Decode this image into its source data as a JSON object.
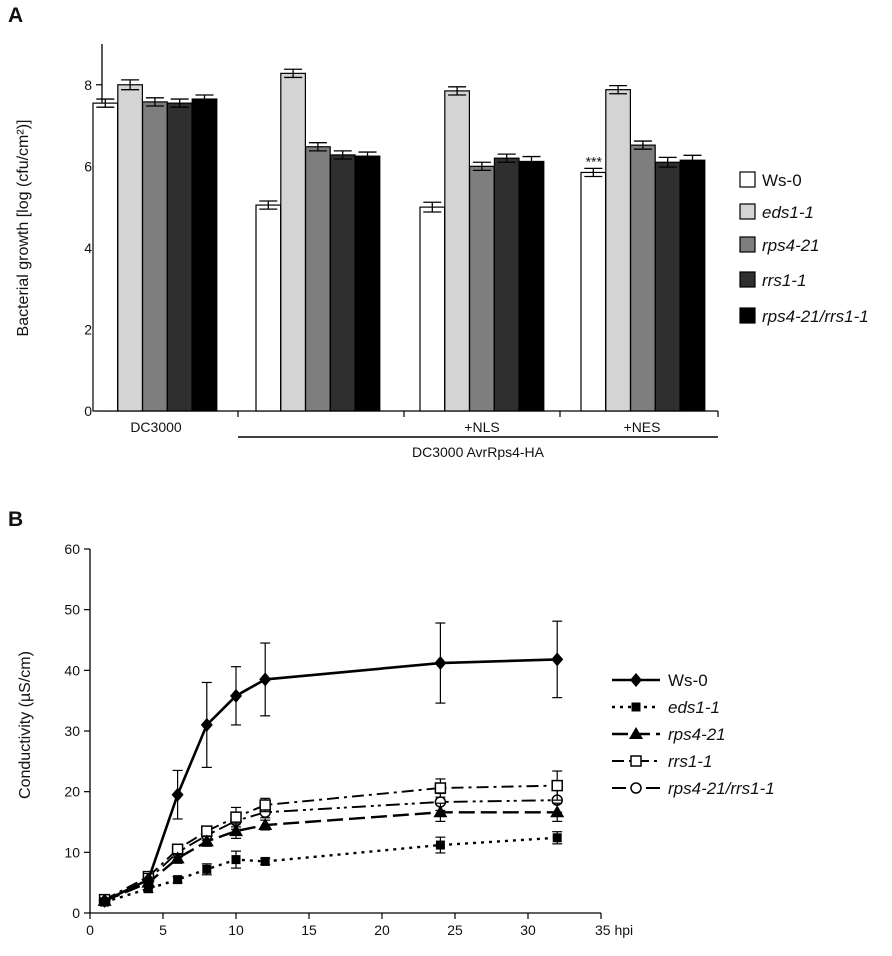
{
  "panels": [
    {
      "letter": "A"
    },
    {
      "letter": "B"
    }
  ],
  "chart_data": [
    {
      "type": "bar",
      "ylabel": "Bacterial growth [log (cfu/cm²)]",
      "ylim": [
        0,
        9
      ],
      "yticks": [
        "0",
        "2",
        "4",
        "6",
        "8"
      ],
      "yticks_values": [
        0,
        2,
        4,
        6,
        8
      ],
      "categories": [
        "DC3000",
        "DC3000 AvrRps4-HA",
        "+NLS",
        "+NES"
      ],
      "category_labels": [
        "DC3000",
        "",
        "+NLS",
        "+NES"
      ],
      "super_group_label": "DC3000 AvrRps4-HA",
      "annotation": "***",
      "series": [
        {
          "name": "Ws-0",
          "italic": false,
          "color": "#ffffff",
          "values": [
            7.55,
            5.05,
            5.0,
            5.85
          ],
          "errors": [
            0.1,
            0.1,
            0.12,
            0.1
          ]
        },
        {
          "name": "eds1-1",
          "italic": true,
          "color": "#d4d4d4",
          "values": [
            8.0,
            8.28,
            7.85,
            7.88
          ],
          "errors": [
            0.12,
            0.1,
            0.1,
            0.1
          ]
        },
        {
          "name": "rps4-21",
          "italic": true,
          "color": "#7e7e7e",
          "values": [
            7.58,
            6.48,
            6.0,
            6.52
          ],
          "errors": [
            0.1,
            0.1,
            0.1,
            0.1
          ]
        },
        {
          "name": "rrs1-1",
          "italic": true,
          "color": "#2f2f2f",
          "values": [
            7.55,
            6.28,
            6.2,
            6.1
          ],
          "errors": [
            0.1,
            0.1,
            0.1,
            0.12
          ]
        },
        {
          "name": "rps4-21/rrs1-1",
          "italic": true,
          "color": "#000000",
          "values": [
            7.65,
            6.25,
            6.12,
            6.15
          ],
          "errors": [
            0.1,
            0.1,
            0.12,
            0.12
          ]
        }
      ]
    },
    {
      "type": "line",
      "ylabel": "Conductivity (µS/cm)",
      "ylim": [
        0,
        60
      ],
      "xlim": [
        0,
        35
      ],
      "yticks": [
        "0",
        "10",
        "20",
        "30",
        "40",
        "50",
        "60"
      ],
      "yticks_values": [
        0,
        10,
        20,
        30,
        40,
        50,
        60
      ],
      "xticks": [
        "0",
        "5",
        "10",
        "15",
        "20",
        "25",
        "30",
        "35 hpi"
      ],
      "xticks_values": [
        0,
        5,
        10,
        15,
        20,
        25,
        30,
        35
      ],
      "series": [
        {
          "name": "Ws-0",
          "italic": false,
          "marker": "diamond",
          "dash": "solid",
          "x": [
            1,
            4,
            6,
            8,
            10,
            12,
            24,
            32
          ],
          "y": [
            2.0,
            5.5,
            19.5,
            31.0,
            35.8,
            38.5,
            41.2,
            41.8
          ],
          "err": [
            0.5,
            1.0,
            4.0,
            7.0,
            4.8,
            6.0,
            6.6,
            6.3
          ]
        },
        {
          "name": "eds1-1",
          "italic": true,
          "marker": "square-filled",
          "dash": "dot",
          "x": [
            1,
            4,
            6,
            8,
            10,
            12,
            24,
            32
          ],
          "y": [
            1.8,
            4.0,
            5.5,
            7.2,
            8.8,
            8.5,
            11.2,
            12.4
          ],
          "err": [
            0.4,
            0.6,
            0.5,
            0.9,
            1.4,
            0.5,
            1.3,
            1.0
          ]
        },
        {
          "name": "rps4-21",
          "italic": true,
          "marker": "triangle",
          "dash": "longdash",
          "x": [
            1,
            4,
            6,
            8,
            10,
            12,
            24,
            32
          ],
          "y": [
            2.0,
            5.0,
            9.0,
            11.8,
            13.5,
            14.5,
            16.6,
            16.6
          ],
          "err": [
            0.4,
            0.6,
            0.8,
            0.8,
            1.2,
            0.8,
            1.5,
            1.5
          ]
        },
        {
          "name": "rrs1-1",
          "italic": true,
          "marker": "square-open",
          "dash": "dashdot",
          "x": [
            1,
            4,
            6,
            8,
            10,
            12,
            24,
            32
          ],
          "y": [
            2.2,
            6.0,
            10.5,
            13.5,
            15.8,
            17.8,
            20.6,
            21.0
          ],
          "err": [
            0.4,
            0.7,
            0.8,
            0.8,
            1.6,
            1.1,
            1.5,
            2.4
          ]
        },
        {
          "name": "rps4-21/rrs1-1",
          "italic": true,
          "marker": "circle-open",
          "dash": "dashdotdot",
          "x": [
            1,
            4,
            6,
            8,
            10,
            12,
            24,
            32
          ],
          "y": [
            2.1,
            5.5,
            10.0,
            12.8,
            15.2,
            16.6,
            18.3,
            18.6
          ],
          "err": [
            0.4,
            0.6,
            0.8,
            0.8,
            1.4,
            0.9,
            1.4,
            2.0
          ]
        }
      ]
    }
  ]
}
